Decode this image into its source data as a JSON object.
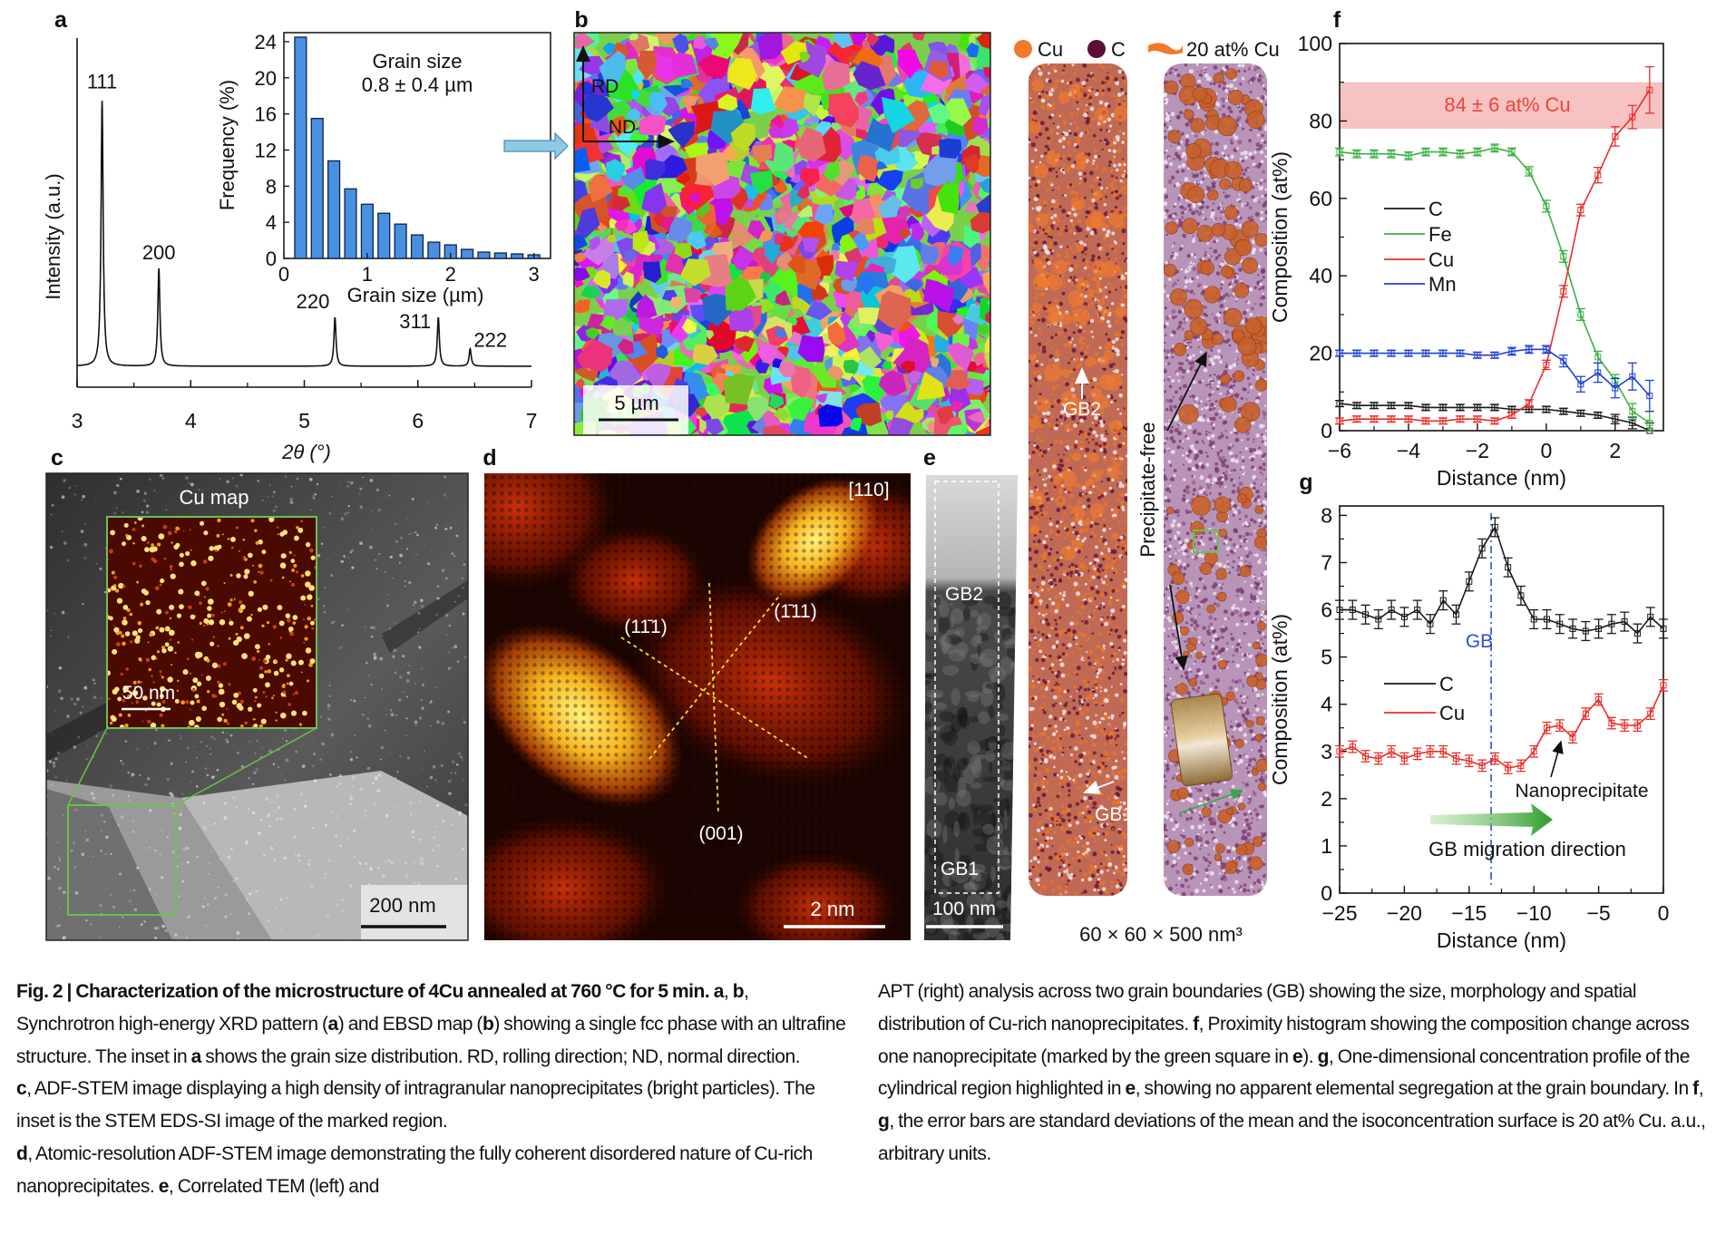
{
  "panel_labels": {
    "a": "a",
    "b": "b",
    "c": "c",
    "d": "d",
    "e": "e",
    "f": "f",
    "g": "g"
  },
  "colors": {
    "C": "#1a1a1a",
    "Fe": "#3cb043",
    "Cu": "#e8302a",
    "Mn": "#1f3fd6",
    "band": "#f6c2c2",
    "band_text": "#e8473b",
    "hist_bar": "#4a90e2",
    "gb_line": "#2a4fd8",
    "inset_arrow": "#8ecae6",
    "apt_cu": "#f07a2a",
    "apt_c": "#5a0f33",
    "green_marker": "#6cc04a"
  },
  "chart_data": [
    {
      "id": "a-xrd",
      "type": "line",
      "xlabel": "2θ (°)",
      "ylabel": "Intensity (a.u.)",
      "xlim": [
        3,
        7
      ],
      "ylim": [
        0,
        100
      ],
      "xticks": [
        "3",
        "4",
        "5",
        "6",
        "7"
      ],
      "baseline": 6,
      "peaks": [
        {
          "label": "111",
          "x": 3.22,
          "height": 76
        },
        {
          "label": "200",
          "x": 3.72,
          "height": 28
        },
        {
          "label": "220",
          "x": 5.27,
          "height": 14
        },
        {
          "label": "311",
          "x": 6.18,
          "height": 14
        },
        {
          "label": "222",
          "x": 6.46,
          "height": 5
        }
      ]
    },
    {
      "id": "a-inset-histogram",
      "type": "bar",
      "xlabel": "Grain size (µm)",
      "ylabel": "Frequency (%)",
      "annotation": [
        "Grain size",
        "0.8 ± 0.4 µm"
      ],
      "xlim": [
        0,
        3.2
      ],
      "ylim": [
        0,
        25
      ],
      "xticks": [
        "0",
        "1",
        "2",
        "3"
      ],
      "yticks": [
        "0",
        "4",
        "8",
        "12",
        "16",
        "20",
        "24"
      ],
      "x": [
        0.2,
        0.4,
        0.6,
        0.8,
        1.0,
        1.2,
        1.4,
        1.6,
        1.8,
        2.0,
        2.2,
        2.4,
        2.6,
        2.8,
        3.0
      ],
      "values": [
        24.5,
        15.5,
        10.8,
        7.7,
        6.0,
        5.0,
        3.8,
        2.6,
        1.8,
        1.5,
        1.0,
        0.7,
        0.6,
        0.5,
        0.4
      ]
    },
    {
      "id": "f-proximity-histogram",
      "type": "line",
      "xlabel": "Distance (nm)",
      "ylabel": "Composition (at%)",
      "xlim": [
        -6,
        3.4
      ],
      "ylim": [
        0,
        100
      ],
      "xticks": [
        "−6",
        "−4",
        "−2",
        "0",
        "2"
      ],
      "yticks": [
        "0",
        "20",
        "40",
        "60",
        "80",
        "100"
      ],
      "band": {
        "from": 78,
        "to": 90,
        "label": "84 ± 6 at% Cu"
      },
      "x": [
        -6,
        -5.5,
        -5,
        -4.5,
        -4,
        -3.5,
        -3,
        -2.5,
        -2,
        -1.5,
        -1,
        -0.5,
        0,
        0.5,
        1,
        1.5,
        2,
        2.5,
        3
      ],
      "series": [
        {
          "name": "C",
          "color_key": "C",
          "values": [
            7,
            6.5,
            6.5,
            6.5,
            6.5,
            6,
            6,
            6,
            6,
            6,
            5.5,
            5.5,
            5.5,
            5,
            4.5,
            4,
            3,
            2,
            0
          ],
          "err": [
            0.8,
            0.8,
            0.8,
            0.8,
            0.8,
            0.8,
            0.8,
            0.8,
            0.8,
            0.8,
            0.8,
            0.8,
            0.8,
            0.8,
            0.8,
            0.8,
            1.2,
            1.5,
            2
          ]
        },
        {
          "name": "Fe",
          "color_key": "Fe",
          "values": [
            72,
            71.5,
            71.5,
            71.5,
            71,
            72,
            72,
            71.5,
            72,
            73,
            72,
            67,
            58,
            45,
            30,
            19,
            13,
            5,
            2
          ],
          "err": [
            1,
            1,
            1,
            1,
            1,
            1,
            1,
            1,
            1,
            1,
            1,
            1.2,
            1.5,
            1.5,
            1.5,
            1.5,
            1.5,
            2,
            3
          ]
        },
        {
          "name": "Cu",
          "color_key": "Cu",
          "values": [
            2.5,
            3,
            3,
            3,
            3,
            2.5,
            2.5,
            3,
            3,
            2.5,
            4,
            7,
            17,
            36,
            57,
            66,
            76,
            81,
            88
          ],
          "err": [
            0.8,
            0.8,
            0.8,
            0.8,
            0.8,
            0.8,
            0.8,
            0.8,
            0.8,
            0.8,
            0.8,
            1,
            1.2,
            1.5,
            1.5,
            2,
            2.5,
            3,
            6
          ]
        },
        {
          "name": "Mn",
          "color_key": "Mn",
          "values": [
            20,
            20,
            20,
            20,
            20,
            20,
            20,
            20,
            19.5,
            19.5,
            20.5,
            21,
            21,
            18,
            12,
            15,
            11,
            14,
            9
          ],
          "err": [
            0.8,
            0.8,
            0.8,
            0.8,
            0.8,
            0.8,
            0.8,
            0.8,
            0.8,
            0.8,
            1,
            1,
            1,
            1.5,
            2,
            2.5,
            2.5,
            3.5,
            4
          ]
        }
      ]
    },
    {
      "id": "g-1d-profile",
      "type": "line",
      "xlabel": "Distance (nm)",
      "ylabel": "Composition (at%)",
      "xlim": [
        -25,
        0
      ],
      "ylim": [
        0,
        8.2
      ],
      "xticks": [
        "−25",
        "−20",
        "−15",
        "−10",
        "−5",
        "0"
      ],
      "yticks": [
        "0",
        "1",
        "2",
        "3",
        "4",
        "5",
        "6",
        "7",
        "8"
      ],
      "gb_x": -13.3,
      "annotations": {
        "gb": "GB",
        "nanoprecipitate": "Nanoprecipitate",
        "migration": "GB migration direction"
      },
      "x": [
        -25,
        -24,
        -23,
        -22,
        -21,
        -20,
        -19,
        -18,
        -17,
        -16,
        -15,
        -14,
        -13,
        -12,
        -11,
        -10,
        -9,
        -8,
        -7,
        -6,
        -5,
        -4,
        -3,
        -2,
        -1,
        0
      ],
      "series": [
        {
          "name": "C",
          "color_key": "C",
          "values": [
            6.0,
            6.0,
            5.9,
            5.8,
            6.0,
            5.85,
            6.0,
            5.7,
            6.2,
            5.9,
            6.6,
            7.3,
            7.75,
            6.9,
            6.3,
            5.8,
            5.8,
            5.7,
            5.6,
            5.55,
            5.6,
            5.7,
            5.75,
            5.5,
            5.85,
            5.6
          ],
          "err": 0.2
        },
        {
          "name": "Cu",
          "color_key": "Cu",
          "values": [
            3.0,
            3.1,
            2.9,
            2.85,
            3.0,
            2.85,
            2.95,
            3.0,
            3.0,
            2.85,
            2.8,
            2.7,
            2.85,
            2.65,
            2.7,
            3.0,
            3.5,
            3.55,
            3.3,
            3.8,
            4.1,
            3.6,
            3.55,
            3.55,
            3.8,
            4.4
          ],
          "err": 0.12
        }
      ]
    }
  ],
  "panel_b": {
    "rd": "RD",
    "nd": "ND",
    "scale": "5 µm"
  },
  "panel_c": {
    "inset_title": "Cu map",
    "inset_scale": "50 nm",
    "scale": "200 nm"
  },
  "panel_d": {
    "zone_axis": "[110]",
    "plane_left": "(11̄1)",
    "plane_right": "(1̄11)",
    "plane_bottom": "(001)",
    "scale": "2 nm"
  },
  "panel_e": {
    "tem": {
      "gb2": "GB2",
      "gb1": "GB1",
      "scale": "100 nm"
    },
    "apt": {
      "legend": [
        "Cu",
        "C",
        "20 at% Cu"
      ],
      "gb2": "GB2",
      "gb1": "GB1",
      "precipitate_free": "Precipitate-free",
      "volume": "60 × 60 × 500 nm³"
    }
  },
  "caption": {
    "left": [
      [
        {
          "t": "Fig. 2 | Characterization of the microstructure of 4Cu annealed at 760 °C for 5 min. a",
          "b": true
        },
        {
          "t": ", "
        },
        {
          "t": "b",
          "b": true
        },
        {
          "t": ", Synchrotron high-energy XRD pattern ("
        },
        {
          "t": "a",
          "b": true
        },
        {
          "t": ") and EBSD map ("
        },
        {
          "t": "b",
          "b": true
        },
        {
          "t": ") showing a single fcc phase with an ultrafine structure. The inset in "
        },
        {
          "t": "a",
          "b": true
        },
        {
          "t": " shows the grain size distribution. RD, rolling direction; ND, normal direction."
        }
      ],
      [
        {
          "t": "c",
          "b": true
        },
        {
          "t": ", ADF-STEM image displaying a high density of intragranular nanoprecipitates (bright particles). The inset is the STEM EDS-SI image of the marked region."
        }
      ],
      [
        {
          "t": "d",
          "b": true
        },
        {
          "t": ", Atomic-resolution ADF-STEM image demonstrating the fully coherent disordered nature of Cu-rich nanoprecipitates. "
        },
        {
          "t": "e",
          "b": true
        },
        {
          "t": ", Correlated TEM (left) and"
        }
      ]
    ],
    "right": [
      [
        {
          "t": "APT (right) analysis across two grain boundaries (GB) showing the size, morphology and spatial distribution of Cu-rich nanoprecipitates. "
        },
        {
          "t": "f",
          "b": true
        },
        {
          "t": ", Proximity histogram showing the composition change across one nanoprecipitate (marked by the green square in "
        },
        {
          "t": "e",
          "b": true
        },
        {
          "t": "). "
        },
        {
          "t": "g",
          "b": true
        },
        {
          "t": ", One-dimensional concentration profile of the cylindrical region highlighted in "
        },
        {
          "t": "e",
          "b": true
        },
        {
          "t": ", showing no apparent elemental segregation at the grain boundary. In "
        },
        {
          "t": "f",
          "b": true
        },
        {
          "t": ", "
        },
        {
          "t": "g",
          "b": true
        },
        {
          "t": ", the error bars are standard deviations of the mean and the isoconcentration surface is 20 at% Cu. a.u., arbitrary units."
        }
      ]
    ]
  }
}
